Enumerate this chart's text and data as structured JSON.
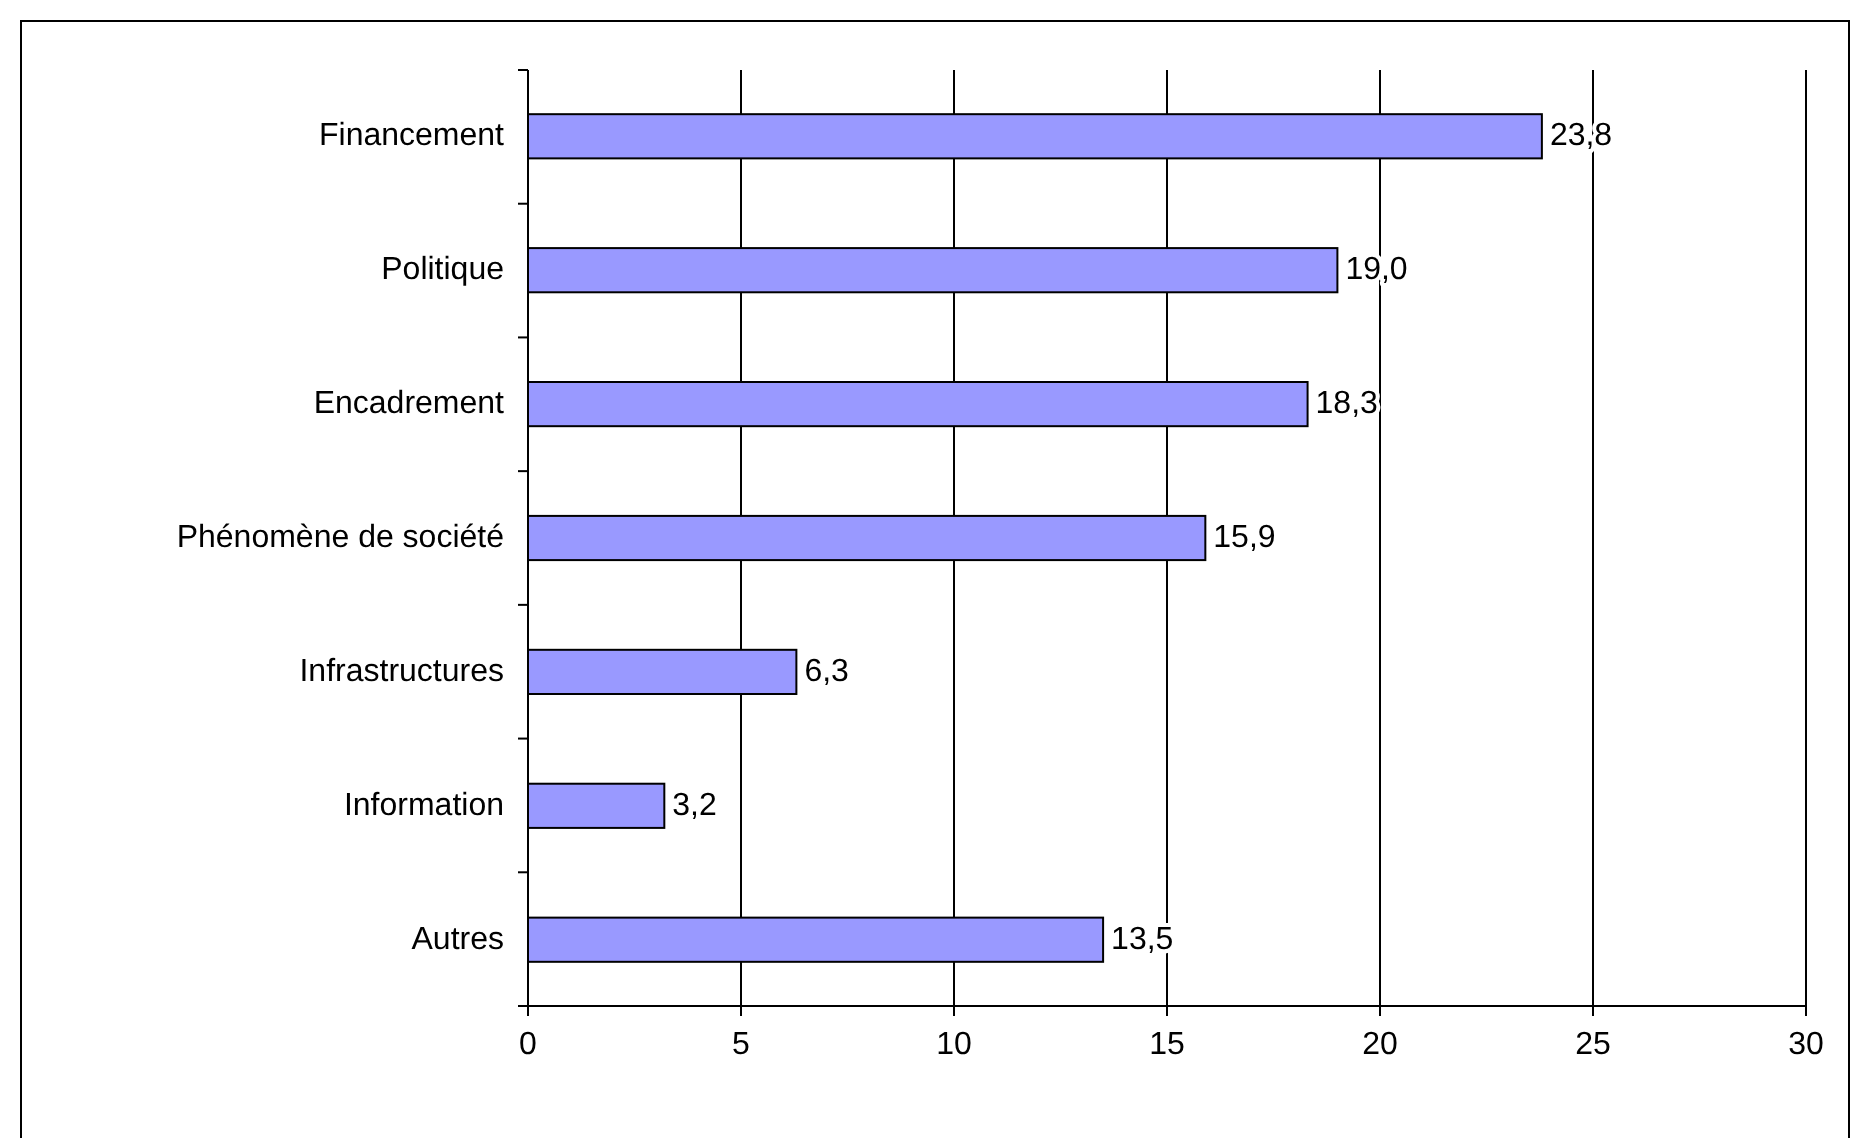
{
  "chart_data": {
    "type": "bar",
    "orientation": "horizontal",
    "categories": [
      "Financement",
      "Politique",
      "Encadrement",
      "Phénomène de société",
      "Infrastructures",
      "Information",
      "Autres"
    ],
    "values": [
      23.8,
      19.0,
      18.3,
      15.9,
      6.3,
      3.2,
      13.5
    ],
    "value_labels": [
      "23,8",
      "19,0",
      "18,3",
      "15,9",
      "6,3",
      "3,2",
      "13,5"
    ],
    "color": "#9999ff",
    "xlim": [
      0,
      30
    ],
    "xticks": [
      0,
      5,
      10,
      15,
      20,
      25,
      30
    ],
    "grid": "x"
  }
}
